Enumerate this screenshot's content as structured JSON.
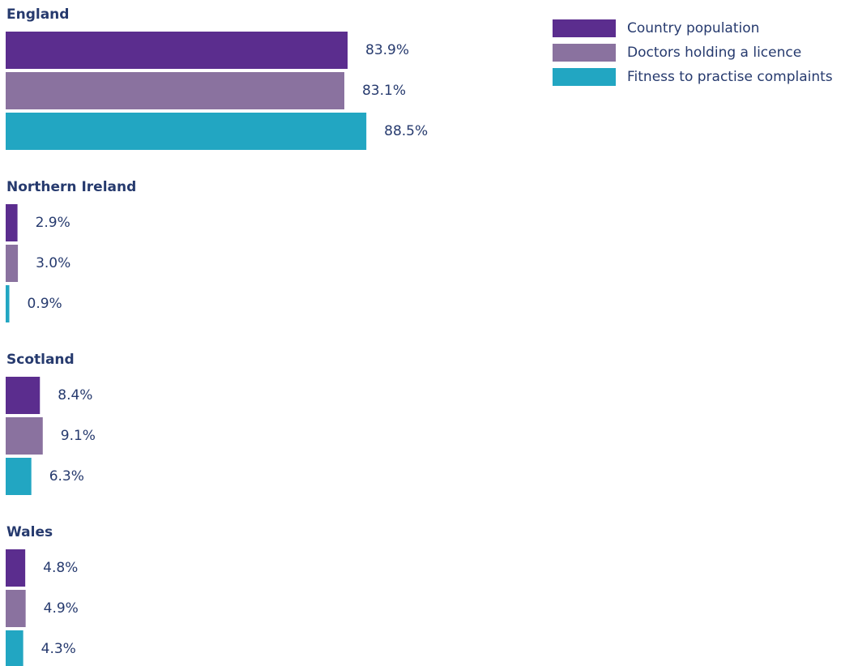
{
  "chart_data": {
    "type": "bar",
    "orientation": "horizontal",
    "categories": [
      "England",
      "Northern Ireland",
      "Scotland",
      "Wales"
    ],
    "series": [
      {
        "name": "Country population",
        "color": "#5b2d8e",
        "values": [
          83.9,
          2.9,
          8.4,
          4.8
        ],
        "value_labels": [
          "83.9%",
          "2.9%",
          "8.4%",
          "4.8%"
        ]
      },
      {
        "name": "Doctors holding a licence",
        "color": "#8a729f",
        "values": [
          83.1,
          3.0,
          9.1,
          4.9
        ],
        "value_labels": [
          "83.1%",
          "3.0%",
          "9.1%",
          "4.9%"
        ]
      },
      {
        "name": "Fitness to practise complaints",
        "color": "#22a6c2",
        "values": [
          88.5,
          0.9,
          6.3,
          4.3
        ],
        "value_labels": [
          "88.5%",
          "0.9%",
          "6.3%",
          "4.3%"
        ]
      }
    ],
    "legend": "top-right"
  }
}
